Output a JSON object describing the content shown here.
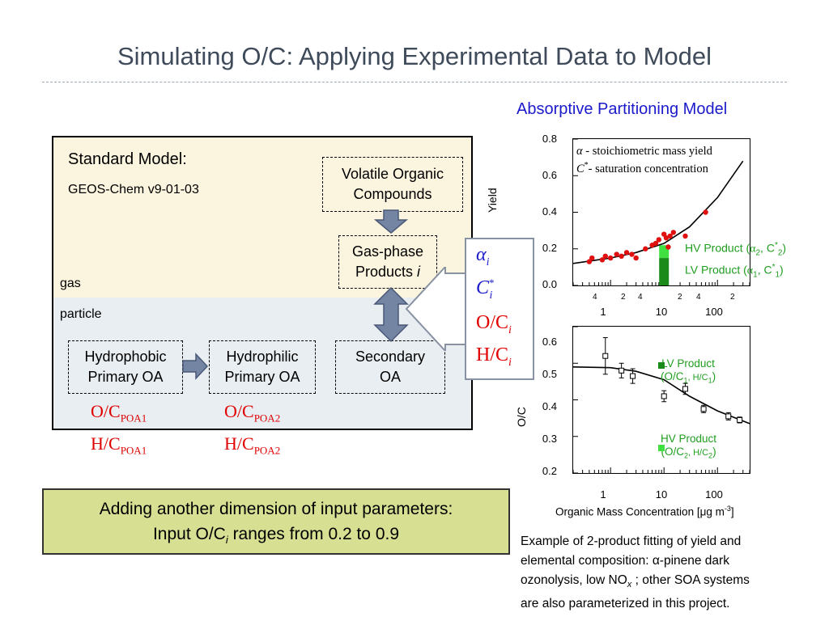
{
  "title": "Simulating O/C: Applying Experimental Data to Model",
  "diagram": {
    "standard_model_label": "Standard Model:",
    "geos_chem_label": "GEOS-Chem v9-01-03",
    "gas_label": "gas",
    "particle_label": "particle",
    "voc_box": [
      "Volatile Organic",
      "Compounds"
    ],
    "gas_phase_box": [
      "Gas-phase",
      "Products"
    ],
    "gas_phase_index": "i",
    "hydrophobic_box": [
      "Hydrophobic",
      "Primary OA"
    ],
    "hydrophilic_box": [
      "Hydrophilic",
      "Primary OA"
    ],
    "secondary_box": [
      "Secondary",
      "OA"
    ],
    "ratios": {
      "oc_label": "O/C",
      "hc_label": "H/C",
      "poa1_sub": "POA1",
      "poa2_sub": "POA2"
    },
    "params": {
      "alpha": "α",
      "c": "C",
      "star": "*",
      "oc": "O/C",
      "hc": "H/C",
      "sub_i": "i"
    }
  },
  "callout": {
    "line1": "Adding another dimension of input parameters:",
    "line2_prefix": "Input O/C",
    "line2_sub": "i",
    "line2_suffix": " ranges from 0.2 to 0.9"
  },
  "model_title": "Absorptive Partitioning Model",
  "chart_data": [
    {
      "type": "scatter",
      "ylabel": "Yield",
      "ylim": [
        0.0,
        0.8
      ],
      "xscale": "log",
      "xlim": [
        0.2,
        400
      ],
      "y_ticks": [
        "0.0",
        "0.2",
        "0.4",
        "0.6",
        "0.8"
      ],
      "x_tick_labels": [
        "1",
        "10",
        "100"
      ],
      "x_minor_labels": [
        "4",
        "2",
        "4",
        "2",
        "4",
        "2"
      ],
      "legend_lines": [
        "α - stoichiometric mass yield",
        "C*- saturation concentration"
      ],
      "legend_alpha": "α",
      "legend_alpha_text": " - stoichiometric mass yield",
      "legend_c": "C",
      "legend_c_text": "- saturation concentration",
      "points": [
        {
          "x": 0.4,
          "y": 0.13
        },
        {
          "x": 0.45,
          "y": 0.15
        },
        {
          "x": 0.7,
          "y": 0.14
        },
        {
          "x": 0.8,
          "y": 0.16
        },
        {
          "x": 1.0,
          "y": 0.15
        },
        {
          "x": 1.3,
          "y": 0.17
        },
        {
          "x": 1.6,
          "y": 0.16
        },
        {
          "x": 2.0,
          "y": 0.18
        },
        {
          "x": 2.5,
          "y": 0.17
        },
        {
          "x": 3.0,
          "y": 0.15
        },
        {
          "x": 4.5,
          "y": 0.2
        },
        {
          "x": 6,
          "y": 0.22
        },
        {
          "x": 7,
          "y": 0.23
        },
        {
          "x": 8,
          "y": 0.25
        },
        {
          "x": 10,
          "y": 0.28
        },
        {
          "x": 11,
          "y": 0.26
        },
        {
          "x": 13,
          "y": 0.27
        },
        {
          "x": 15,
          "y": 0.29
        },
        {
          "x": 12,
          "y": 0.21
        },
        {
          "x": 25,
          "y": 0.27
        },
        {
          "x": 60,
          "y": 0.4
        }
      ],
      "fit_curve": [
        {
          "x": 0.2,
          "y": 0.12
        },
        {
          "x": 1,
          "y": 0.15
        },
        {
          "x": 3,
          "y": 0.18
        },
        {
          "x": 10,
          "y": 0.23
        },
        {
          "x": 30,
          "y": 0.32
        },
        {
          "x": 100,
          "y": 0.48
        },
        {
          "x": 300,
          "y": 0.68
        }
      ],
      "hv_bar": {
        "x": 10,
        "y0": 0.15,
        "y1": 0.22,
        "color": "#3fe03f"
      },
      "lv_bar": {
        "x": 10,
        "y0": 0.0,
        "y1": 0.15,
        "color": "#1a8a1a"
      },
      "hv_label": {
        "text": "HV Product (",
        "alpha": "α",
        "sub2": "2",
        "c": ", C",
        "sup": "*",
        "close": ")"
      },
      "lv_label": {
        "text": "LV Product (",
        "alpha": "α",
        "sub1": "1",
        "c": ", C",
        "sup": "*",
        "close": ")"
      }
    },
    {
      "type": "scatter",
      "ylabel": "O/C",
      "xlabel": "Organic Mass Concentration [μg m",
      "xlabel_sup": "-3",
      "xlabel_close": "]",
      "ylim": [
        0.2,
        0.6
      ],
      "xscale": "log",
      "xlim": [
        0.2,
        400
      ],
      "y_ticks": [
        "0.2",
        "0.3",
        "0.4",
        "0.5",
        "0.6"
      ],
      "x_tick_labels": [
        "1",
        "10",
        "100"
      ],
      "points": [
        {
          "x": 0.8,
          "y": 0.52,
          "err": 0.05
        },
        {
          "x": 1.6,
          "y": 0.48,
          "err": 0.02
        },
        {
          "x": 2.6,
          "y": 0.465,
          "err": 0.02
        },
        {
          "x": 10,
          "y": 0.41,
          "err": 0.015
        },
        {
          "x": 25,
          "y": 0.43,
          "err": 0.015
        },
        {
          "x": 55,
          "y": 0.375,
          "err": 0.01
        },
        {
          "x": 160,
          "y": 0.355,
          "err": 0.01
        },
        {
          "x": 260,
          "y": 0.345,
          "err": 0.008
        }
      ],
      "fit_curve": [
        {
          "x": 0.2,
          "y": 0.49
        },
        {
          "x": 1,
          "y": 0.488
        },
        {
          "x": 3,
          "y": 0.478
        },
        {
          "x": 10,
          "y": 0.455
        },
        {
          "x": 30,
          "y": 0.41
        },
        {
          "x": 100,
          "y": 0.37
        },
        {
          "x": 400,
          "y": 0.335
        }
      ],
      "lv_legend": {
        "marker_color": "#1a8a1a",
        "title": "LV Product",
        "line2": "(O/C",
        "sub1": "1",
        "mid": ", H/C",
        "sub1b": "1",
        "close": ")"
      },
      "hv_legend": {
        "marker_color": "#3fe03f",
        "title": "HV Product",
        "line2": "(O/C",
        "sub2": "2",
        "mid": ", H/C",
        "sub2b": "2",
        "close": ")"
      }
    }
  ],
  "caption": {
    "line1": "Example of 2-product fitting of yield and",
    "line2": "elemental composition:  α-pinene dark",
    "line3_prefix": "ozonolysis, low NO",
    "line3_sub": "x",
    "line3_suffix": " ;  other SOA systems",
    "line4": "are also parameterized in this project."
  }
}
